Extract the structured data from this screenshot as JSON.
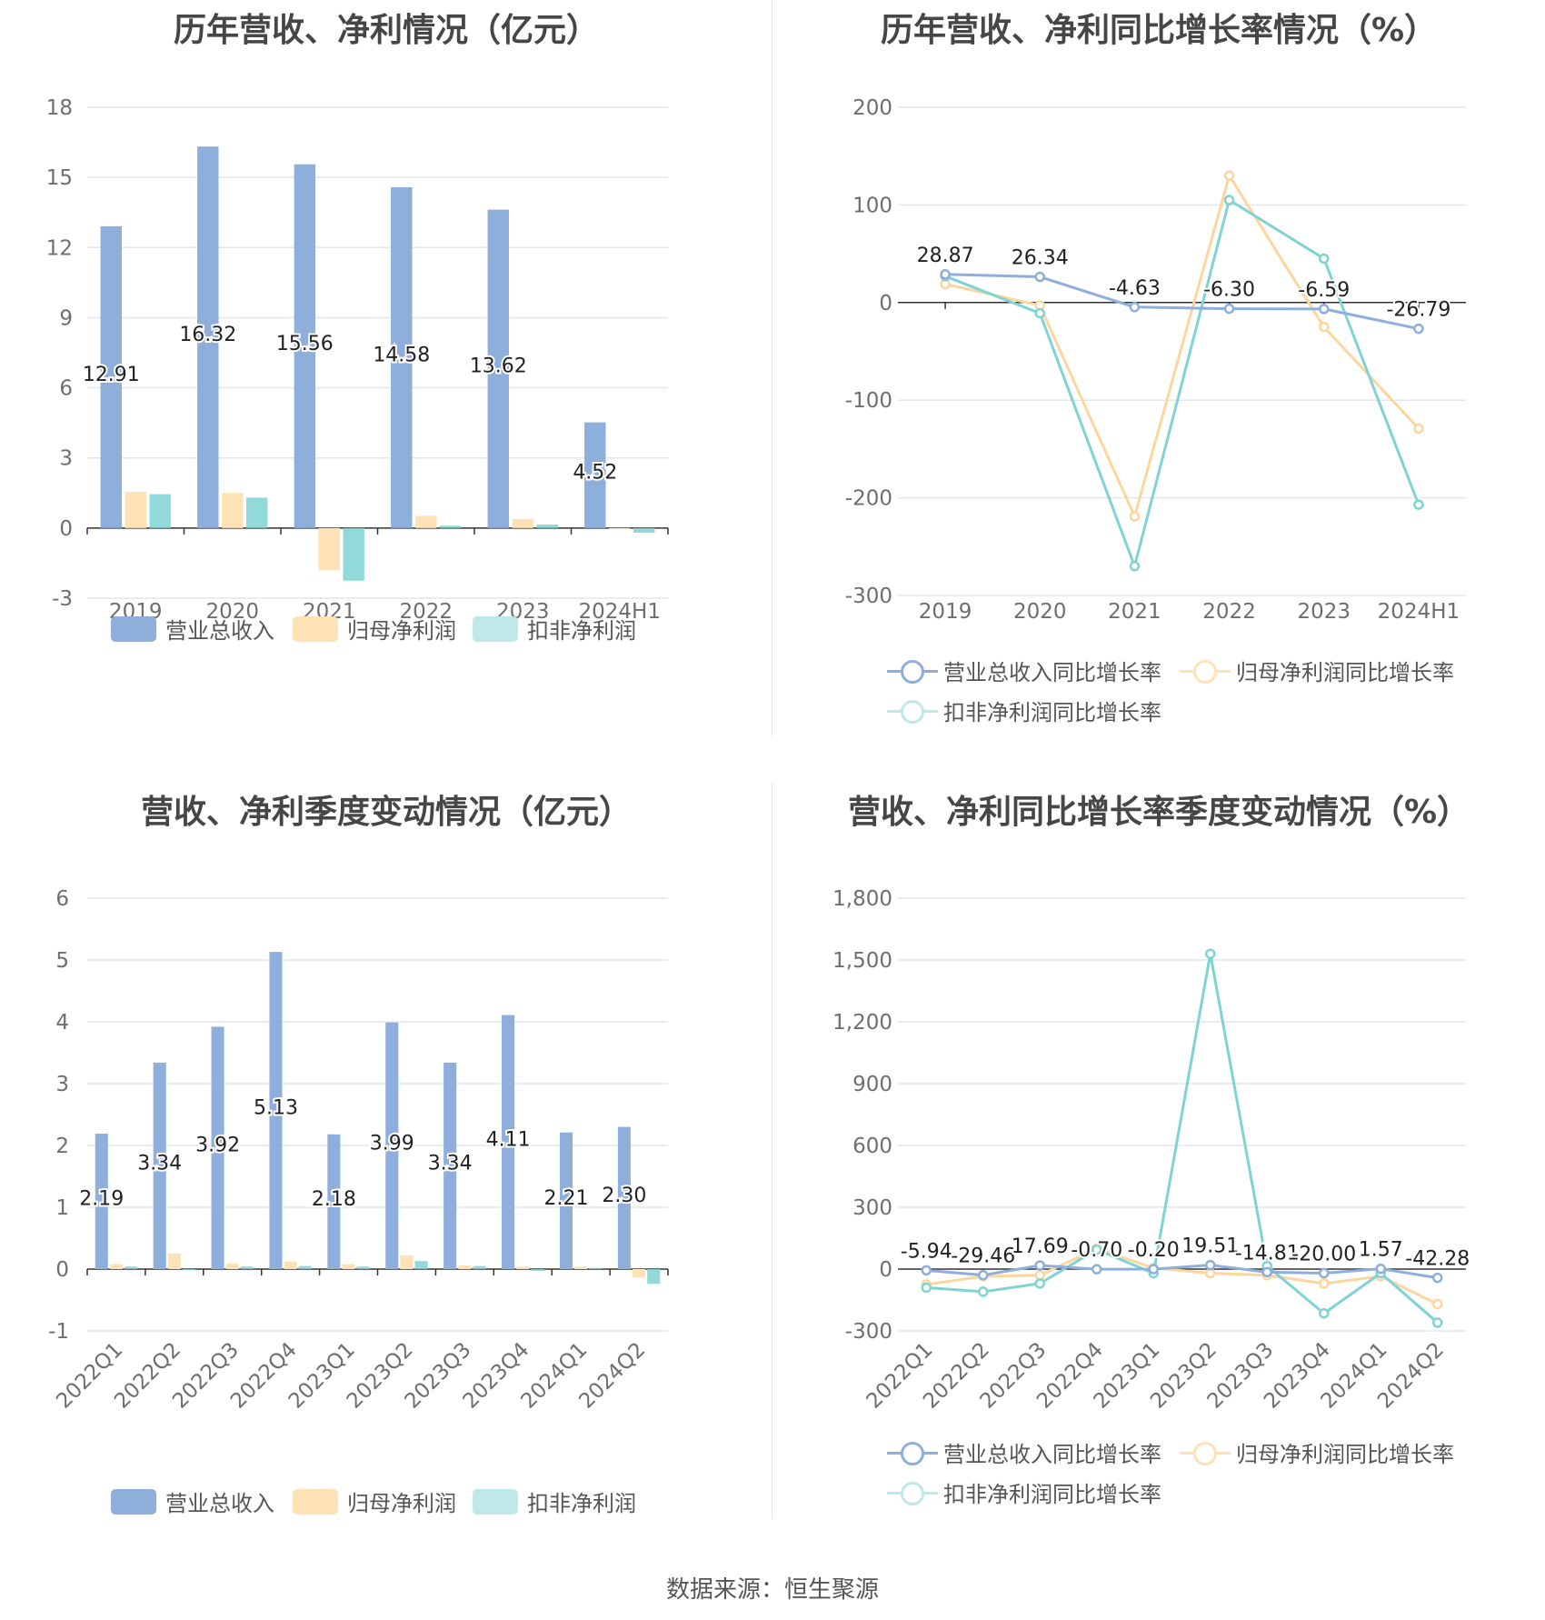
{
  "colors": {
    "revenue": "#8eaedb",
    "net_profit": "#fde2b5",
    "deducted_profit": "#7fd3d3",
    "revenue_line": "#8eaedb",
    "net_profit_line": "#fcd69e",
    "deducted_line": "#7fd3d3",
    "grid": "#e3e6ee",
    "axis_text": "#6e6e6e"
  },
  "source": "数据来源：恒生聚源",
  "chart_data": [
    {
      "type": "bar",
      "title": "历年营收、净利情况（亿元）",
      "categories": [
        "2019",
        "2020",
        "2021",
        "2022",
        "2023",
        "2024H1"
      ],
      "ylim": [
        -3,
        18
      ],
      "yticks": [
        -3,
        0,
        3,
        6,
        9,
        12,
        15,
        18
      ],
      "series": [
        {
          "name": "营业总收入",
          "values": [
            12.91,
            16.32,
            15.56,
            14.58,
            13.62,
            4.52
          ],
          "labels": [
            "12.91",
            "16.32",
            "15.56",
            "14.58",
            "13.62",
            "4.52"
          ]
        },
        {
          "name": "归母净利润",
          "values": [
            1.55,
            1.5,
            -1.8,
            0.52,
            0.38,
            -0.05
          ]
        },
        {
          "name": "扣非净利润",
          "values": [
            1.45,
            1.3,
            -2.25,
            0.1,
            0.15,
            -0.2
          ]
        }
      ],
      "grid": true,
      "legend": "bottom"
    },
    {
      "type": "line",
      "title": "历年营收、净利同比增长率情况（%）",
      "categories": [
        "2019",
        "2020",
        "2021",
        "2022",
        "2023",
        "2024H1"
      ],
      "ylim": [
        -300,
        200
      ],
      "yticks": [
        -300,
        -200,
        -100,
        0,
        100,
        200
      ],
      "series": [
        {
          "name": "营业总收入同比增长率",
          "values": [
            28.87,
            26.34,
            -4.63,
            -6.3,
            -6.59,
            -26.79
          ],
          "labels": [
            "28.87",
            "26.34",
            "-4.63",
            "-6.30",
            "-6.59",
            "-26.79"
          ]
        },
        {
          "name": "归母净利润同比增长率",
          "values": [
            19,
            -3,
            -219,
            130,
            -25,
            -129
          ]
        },
        {
          "name": "扣非净利润同比增长率",
          "values": [
            27,
            -11,
            -270,
            105,
            45,
            -207
          ]
        }
      ],
      "grid": true,
      "legend": "bottom"
    },
    {
      "type": "bar",
      "title": "营收、净利季度变动情况（亿元）",
      "categories": [
        "2022Q1",
        "2022Q2",
        "2022Q3",
        "2022Q4",
        "2023Q1",
        "2023Q2",
        "2023Q3",
        "2023Q4",
        "2024Q1",
        "2024Q2"
      ],
      "ylim": [
        -1,
        6
      ],
      "yticks": [
        -1,
        0,
        1,
        2,
        3,
        4,
        5,
        6
      ],
      "series": [
        {
          "name": "营业总收入",
          "values": [
            2.19,
            3.34,
            3.92,
            5.13,
            2.18,
            3.99,
            3.34,
            4.11,
            2.21,
            2.3
          ],
          "labels": [
            "2.19",
            "3.34",
            "3.92",
            "5.13",
            "2.18",
            "3.99",
            "3.34",
            "4.11",
            "2.21",
            "2.30"
          ]
        },
        {
          "name": "归母净利润",
          "values": [
            0.08,
            0.25,
            0.09,
            0.12,
            0.08,
            0.22,
            0.06,
            0.04,
            0.04,
            -0.14
          ]
        },
        {
          "name": "扣非净利润",
          "values": [
            0.04,
            0.0,
            0.04,
            0.05,
            0.04,
            0.13,
            0.05,
            -0.03,
            0.02,
            -0.24
          ]
        }
      ],
      "grid": true,
      "legend": "bottom"
    },
    {
      "type": "line",
      "title": "营收、净利同比增长率季度变动情况（%）",
      "categories": [
        "2022Q1",
        "2022Q2",
        "2022Q3",
        "2022Q4",
        "2023Q1",
        "2023Q2",
        "2023Q3",
        "2023Q4",
        "2024Q1",
        "2024Q2"
      ],
      "ylim": [
        -300,
        1800
      ],
      "yticks": [
        -300,
        0,
        300,
        600,
        900,
        1200,
        1500,
        1800
      ],
      "ytick_labels": [
        "-300",
        "0",
        "300",
        "600",
        "900",
        "1,200",
        "1,500",
        "1,800"
      ],
      "series": [
        {
          "name": "营业总收入同比增长率",
          "values": [
            -5.94,
            -29.46,
            17.69,
            -0.7,
            -0.2,
            19.51,
            -14.81,
            -20.0,
            1.57,
            -42.28
          ],
          "labels": [
            "-5.94",
            "-29.46",
            "17.69",
            "-0.70",
            "-0.20",
            "19.51",
            "-14.81",
            "-20.00",
            "1.57",
            "-42.28"
          ]
        },
        {
          "name": "归母净利润同比增长率",
          "values": [
            -75,
            -35,
            -30,
            100,
            5,
            -20,
            -30,
            -70,
            -35,
            -170
          ]
        },
        {
          "name": "扣非净利润同比增长率",
          "values": [
            -90,
            -110,
            -70,
            95,
            -20,
            1530,
            15,
            -215,
            -20,
            -260
          ]
        }
      ],
      "grid": true,
      "legend": "bottom"
    }
  ]
}
